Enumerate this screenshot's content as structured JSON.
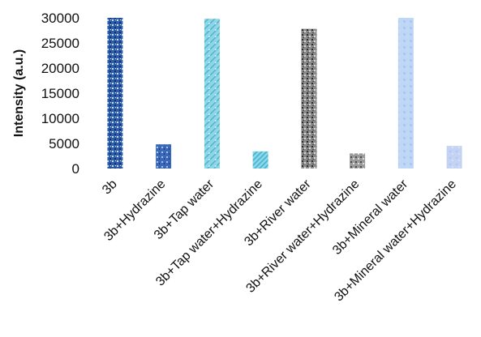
{
  "chart_data": {
    "type": "bar",
    "title": "",
    "xlabel": "",
    "ylabel": "Intensity (a.u.)",
    "ylim": [
      0,
      30000
    ],
    "yticks": [
      0,
      5000,
      10000,
      15000,
      20000,
      25000,
      30000
    ],
    "grid": false,
    "legend": "none",
    "categories": [
      "3b",
      "3b+Hydrazine",
      "3b+Tap water",
      "3b+Tap water+Hydrazine",
      "3b+River water",
      "3b+River water+Hydrazine",
      "3b+Mineral water",
      "3b+Mineral water+Hydrazine"
    ],
    "values": [
      30000,
      4800,
      29800,
      3400,
      27800,
      3000,
      30000,
      4500
    ],
    "colors": [
      "#2f5ea8",
      "#3a68b8",
      "#74cde0",
      "#5ec4dc",
      "#6a6a6a",
      "#7a7a7a",
      "#b8d4f4",
      "#bfcff2"
    ]
  }
}
